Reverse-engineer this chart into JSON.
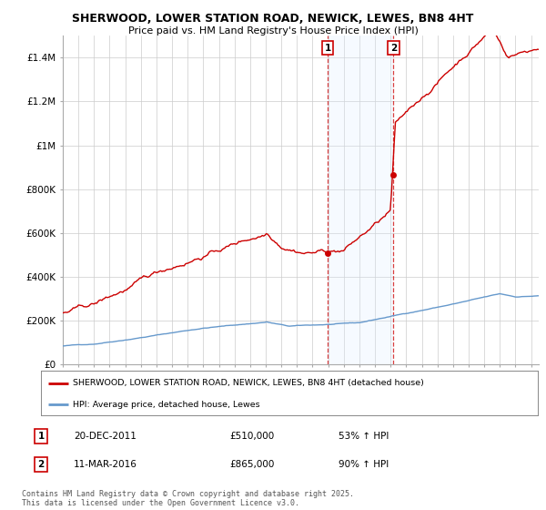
{
  "title": "SHERWOOD, LOWER STATION ROAD, NEWICK, LEWES, BN8 4HT",
  "subtitle": "Price paid vs. HM Land Registry's House Price Index (HPI)",
  "ylim": [
    0,
    1500000
  ],
  "yticks": [
    0,
    200000,
    400000,
    600000,
    800000,
    1000000,
    1200000,
    1400000
  ],
  "ytick_labels": [
    "£0",
    "£200K",
    "£400K",
    "£600K",
    "£800K",
    "£1M",
    "£1.2M",
    "£1.4M"
  ],
  "sale1_date": "20-DEC-2011",
  "sale1_price": 510000,
  "sale1_label": "53% ↑ HPI",
  "sale1_x": 2011.97,
  "sale2_date": "11-MAR-2016",
  "sale2_price": 865000,
  "sale2_label": "90% ↑ HPI",
  "sale2_x": 2016.19,
  "hpi_shade_color": "#ddeeff",
  "price_color": "#cc0000",
  "hpi_line_color": "#6699cc",
  "annotation_box_color": "#cc0000",
  "legend_label_price": "SHERWOOD, LOWER STATION ROAD, NEWICK, LEWES, BN8 4HT (detached house)",
  "legend_label_hpi": "HPI: Average price, detached house, Lewes",
  "footnote": "Contains HM Land Registry data © Crown copyright and database right 2025.\nThis data is licensed under the Open Government Licence v3.0.",
  "background_color": "#ffffff",
  "grid_color": "#cccccc",
  "shade_x1": 2011.97,
  "shade_x2": 2016.19,
  "xlim_left": 1995,
  "xlim_right": 2025.5
}
